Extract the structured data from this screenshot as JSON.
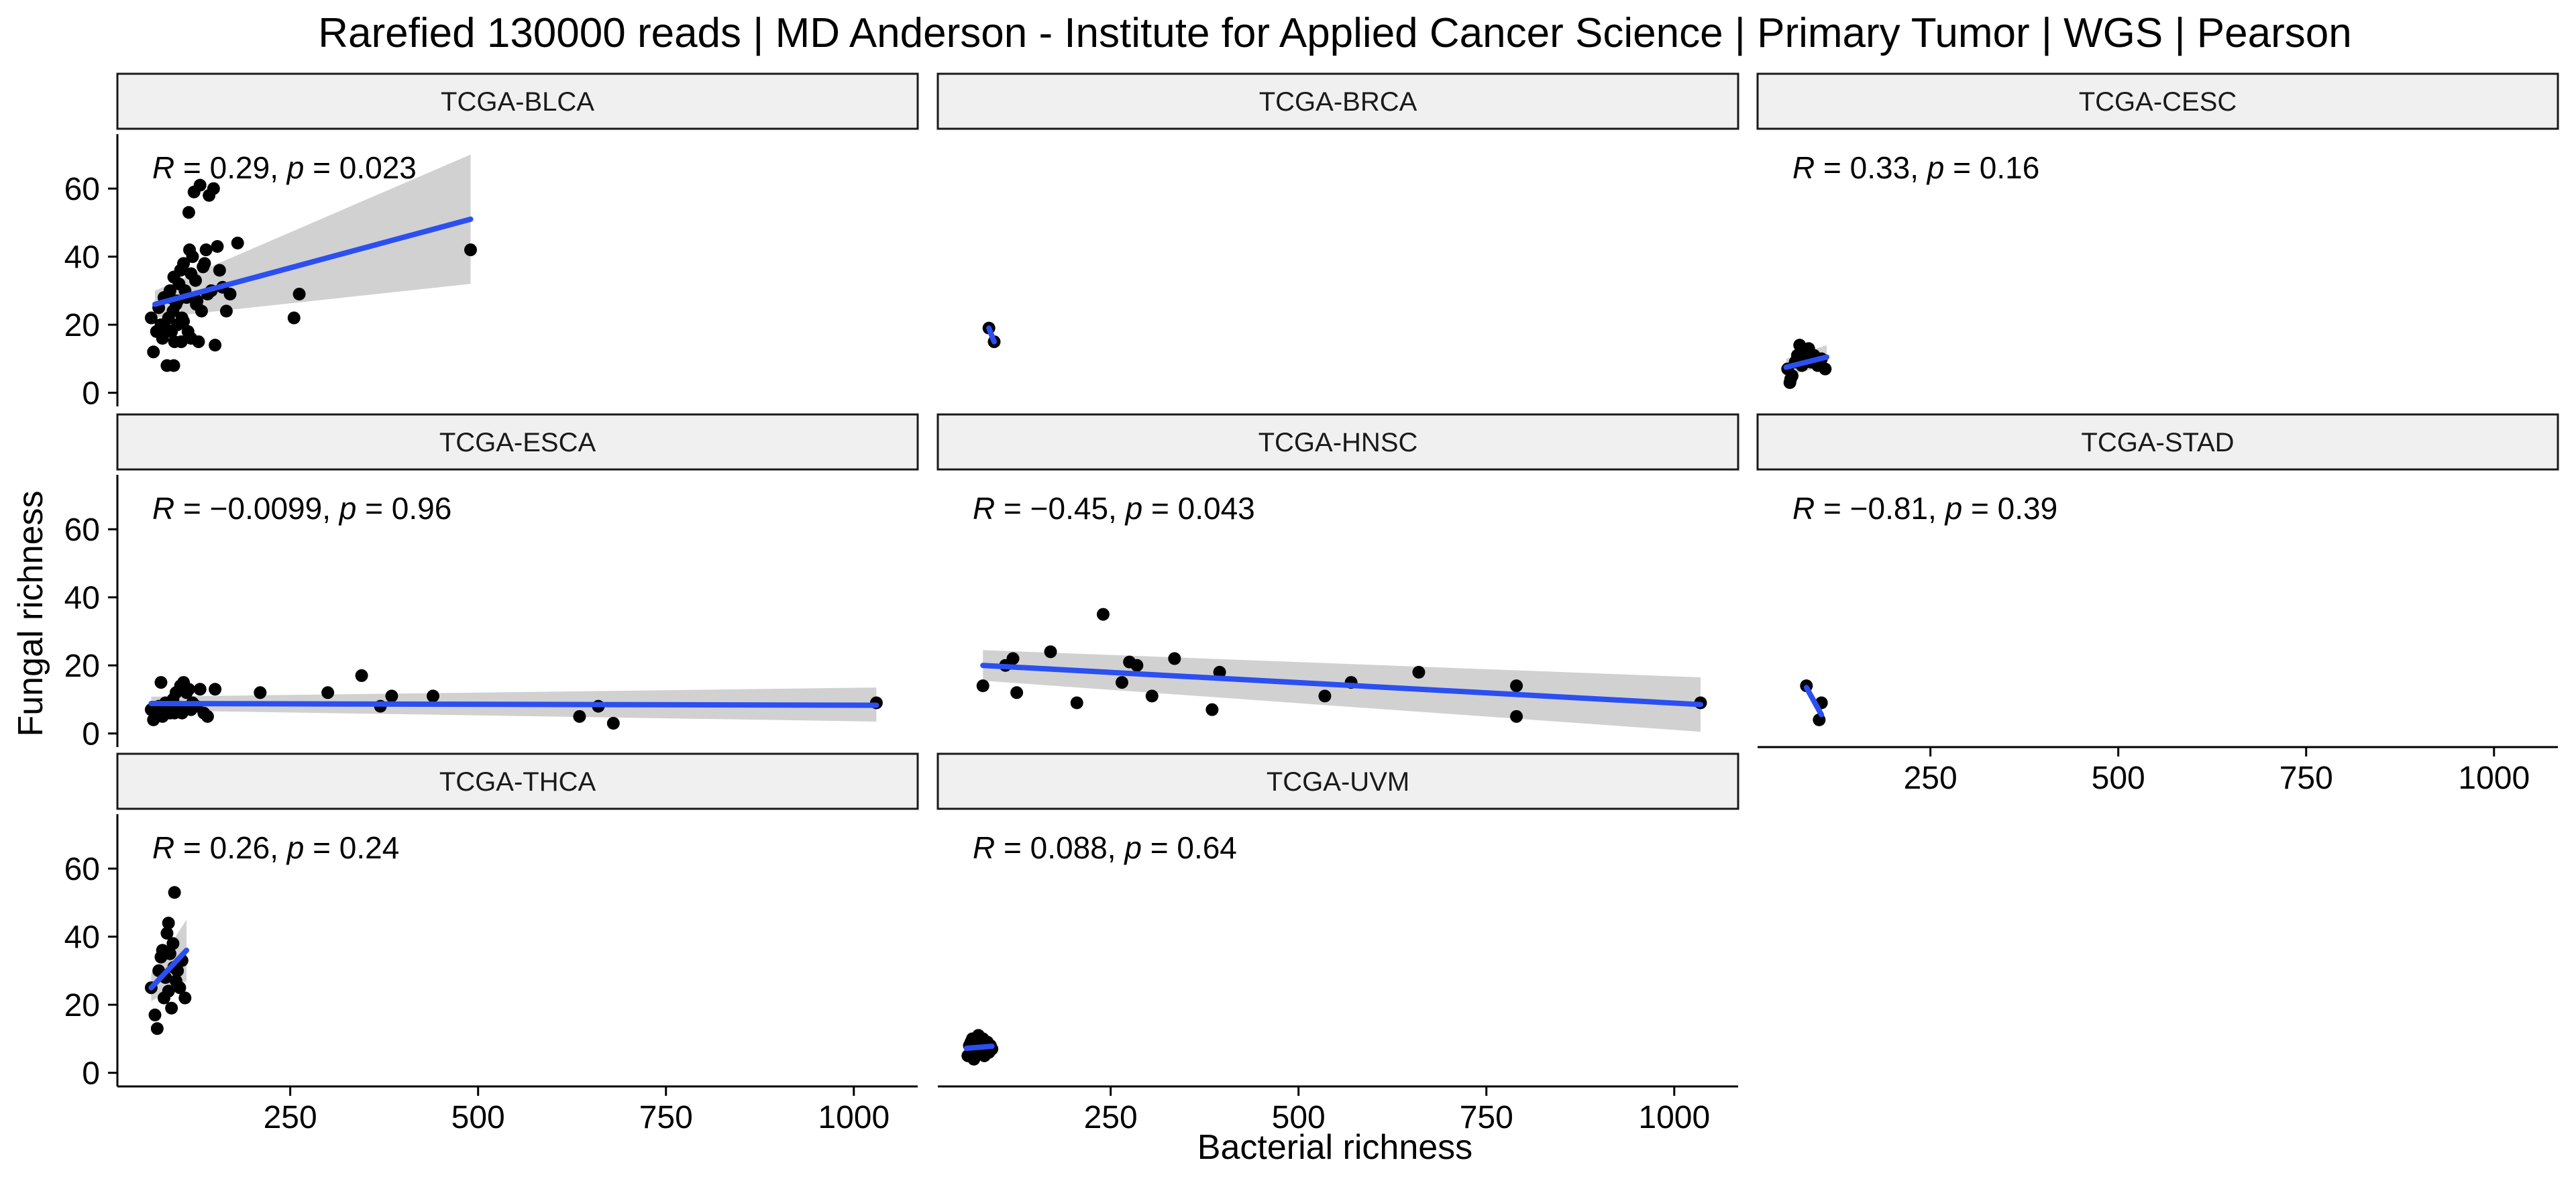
{
  "chart_data": {
    "type": "scatter",
    "title": "Rarefied 130000 reads | MD Anderson - Institute for Applied Cancer Science | Primary Tumor | WGS | Pearson",
    "xlabel": "Bacterial richness",
    "ylabel": "Fungal richness",
    "xlim": [
      20,
      1085
    ],
    "ylim": [
      -4,
      76
    ],
    "xticks": [
      250,
      500,
      750,
      1000
    ],
    "yticks": [
      0,
      20,
      40,
      60
    ],
    "grid": false,
    "point_color": "#000000",
    "line_color": "#2b4ff0",
    "band_color": "#cccccc",
    "strip_fill": "#f0f0f0",
    "panels": [
      {
        "name": "TCGA-BLCA",
        "stat": {
          "R_label": "R",
          "R_value": " = 0.29, ",
          "p_label": "p",
          "p_value": " = 0.023"
        },
        "points": [
          [
            65,
            22
          ],
          [
            68,
            12
          ],
          [
            72,
            18
          ],
          [
            75,
            25
          ],
          [
            78,
            20
          ],
          [
            80,
            16
          ],
          [
            82,
            28
          ],
          [
            84,
            19
          ],
          [
            86,
            8
          ],
          [
            88,
            22
          ],
          [
            90,
            30
          ],
          [
            92,
            18
          ],
          [
            94,
            24
          ],
          [
            95,
            34
          ],
          [
            96,
            15
          ],
          [
            98,
            26
          ],
          [
            100,
            20
          ],
          [
            102,
            32
          ],
          [
            104,
            36
          ],
          [
            106,
            22
          ],
          [
            108,
            38
          ],
          [
            110,
            30
          ],
          [
            112,
            28
          ],
          [
            114,
            18
          ],
          [
            115,
            53
          ],
          [
            116,
            42
          ],
          [
            118,
            35
          ],
          [
            120,
            40
          ],
          [
            122,
            59
          ],
          [
            124,
            33
          ],
          [
            126,
            27
          ],
          [
            128,
            15
          ],
          [
            130,
            61
          ],
          [
            132,
            24
          ],
          [
            134,
            37
          ],
          [
            136,
            38
          ],
          [
            138,
            42
          ],
          [
            140,
            29
          ],
          [
            142,
            58
          ],
          [
            145,
            30
          ],
          [
            148,
            60
          ],
          [
            150,
            14
          ],
          [
            153,
            43
          ],
          [
            156,
            36
          ],
          [
            160,
            31
          ],
          [
            165,
            24
          ],
          [
            170,
            29
          ],
          [
            180,
            44
          ],
          [
            255,
            22
          ],
          [
            262,
            29
          ],
          [
            490,
            42
          ],
          [
            95,
            8
          ],
          [
            100,
            27
          ],
          [
            108,
            21
          ],
          [
            118,
            16
          ],
          [
            125,
            26
          ],
          [
            90,
            28
          ],
          [
            105,
            15
          ]
        ],
        "fit": {
          "x": [
            70,
            490
          ],
          "y": [
            26,
            51
          ],
          "band_lo": [
            22,
            32
          ],
          "band_hi": [
            30,
            70
          ]
        }
      },
      {
        "name": "TCGA-BRCA",
        "stat": null,
        "points": [
          [
            88,
            19
          ],
          [
            95,
            15
          ]
        ],
        "fit": {
          "x": [
            88,
            95
          ],
          "y": [
            19,
            15
          ],
          "band_lo": [
            19,
            15
          ],
          "band_hi": [
            19,
            15
          ]
        }
      },
      {
        "name": "TCGA-CESC",
        "stat": {
          "R_label": "R",
          "R_value": " = 0.33, ",
          "p_label": "p",
          "p_value": " = 0.16"
        },
        "points": [
          [
            60,
            7
          ],
          [
            63,
            3
          ],
          [
            66,
            5
          ],
          [
            70,
            9
          ],
          [
            73,
            11
          ],
          [
            76,
            14
          ],
          [
            79,
            8
          ],
          [
            82,
            12
          ],
          [
            85,
            10
          ],
          [
            88,
            13
          ],
          [
            91,
            9
          ],
          [
            95,
            11
          ],
          [
            100,
            8
          ],
          [
            105,
            10
          ],
          [
            110,
            7
          ],
          [
            64,
            4
          ]
        ],
        "fit": {
          "x": [
            58,
            112
          ],
          "y": [
            7.5,
            10.5
          ],
          "band_lo": [
            5,
            8
          ],
          "band_hi": [
            10,
            14
          ]
        }
      },
      {
        "name": "TCGA-ESCA",
        "stat": {
          "R_label": "R",
          "R_value": " = −0.0099, ",
          "p_label": "p",
          "p_value": " = 0.96"
        },
        "points": [
          [
            65,
            7
          ],
          [
            68,
            4
          ],
          [
            70,
            6
          ],
          [
            72,
            5
          ],
          [
            75,
            8
          ],
          [
            78,
            15
          ],
          [
            80,
            5
          ],
          [
            82,
            7
          ],
          [
            84,
            9
          ],
          [
            86,
            6
          ],
          [
            88,
            7
          ],
          [
            90,
            6
          ],
          [
            92,
            8
          ],
          [
            94,
            10
          ],
          [
            96,
            6
          ],
          [
            98,
            12
          ],
          [
            100,
            7
          ],
          [
            104,
            14
          ],
          [
            106,
            6
          ],
          [
            108,
            15
          ],
          [
            110,
            7
          ],
          [
            112,
            12
          ],
          [
            115,
            13
          ],
          [
            120,
            9
          ],
          [
            125,
            8
          ],
          [
            130,
            13
          ],
          [
            140,
            5
          ],
          [
            150,
            13
          ],
          [
            210,
            12
          ],
          [
            300,
            12
          ],
          [
            345,
            17
          ],
          [
            370,
            8
          ],
          [
            385,
            11
          ],
          [
            440,
            11
          ],
          [
            635,
            5
          ],
          [
            660,
            8
          ],
          [
            680,
            3
          ],
          [
            1030,
            9
          ],
          [
            118,
            7
          ],
          [
            135,
            6
          ]
        ],
        "fit": {
          "x": [
            65,
            1030
          ],
          "y": [
            8.8,
            8.3
          ],
          "band_lo": [
            6.8,
            3.5
          ],
          "band_hi": [
            10.8,
            13.5
          ]
        }
      },
      {
        "name": "TCGA-HNSC",
        "stat": {
          "R_label": "R",
          "R_value": " = −0.45, ",
          "p_label": "p",
          "p_value": " = 0.043"
        },
        "points": [
          [
            80,
            14
          ],
          [
            110,
            20
          ],
          [
            120,
            22
          ],
          [
            125,
            12
          ],
          [
            170,
            24
          ],
          [
            205,
            9
          ],
          [
            240,
            35
          ],
          [
            265,
            15
          ],
          [
            275,
            21
          ],
          [
            285,
            20
          ],
          [
            305,
            11
          ],
          [
            335,
            22
          ],
          [
            385,
            7
          ],
          [
            395,
            18
          ],
          [
            535,
            11
          ],
          [
            570,
            15
          ],
          [
            660,
            18
          ],
          [
            790,
            14
          ],
          [
            790,
            5
          ],
          [
            1035,
            9
          ]
        ],
        "fit": {
          "x": [
            80,
            1035
          ],
          "y": [
            20,
            8.5
          ],
          "band_lo": [
            15.5,
            0.5
          ],
          "band_hi": [
            24.5,
            16.5
          ]
        }
      },
      {
        "name": "TCGA-STAD",
        "stat": {
          "R_label": "R",
          "R_value": " = −0.81, ",
          "p_label": "p",
          "p_value": " = 0.39"
        },
        "points": [
          [
            85,
            14
          ],
          [
            102,
            4
          ],
          [
            105,
            9
          ]
        ],
        "fit": {
          "x": [
            85,
            105
          ],
          "y": [
            13.5,
            5.5
          ],
          "band_lo": [
            13.5,
            5.5
          ],
          "band_hi": [
            13.5,
            5.5
          ]
        }
      },
      {
        "name": "TCGA-THCA",
        "stat": {
          "R_label": "R",
          "R_value": " = 0.26, ",
          "p_label": "p",
          "p_value": " = 0.24"
        },
        "points": [
          [
            65,
            25
          ],
          [
            70,
            17
          ],
          [
            73,
            13
          ],
          [
            75,
            30
          ],
          [
            78,
            34
          ],
          [
            80,
            36
          ],
          [
            82,
            22
          ],
          [
            84,
            28
          ],
          [
            86,
            41
          ],
          [
            88,
            44
          ],
          [
            90,
            35
          ],
          [
            92,
            19
          ],
          [
            94,
            38
          ],
          [
            96,
            53
          ],
          [
            98,
            27
          ],
          [
            100,
            30
          ],
          [
            103,
            25
          ],
          [
            106,
            33
          ],
          [
            110,
            22
          ],
          [
            88,
            24
          ],
          [
            95,
            31
          ]
        ],
        "fit": {
          "x": [
            65,
            112
          ],
          "y": [
            25,
            36
          ],
          "band_lo": [
            21,
            27
          ],
          "band_hi": [
            29,
            45
          ]
        }
      },
      {
        "name": "TCGA-UVM",
        "stat": {
          "R_label": "R",
          "R_value": " = 0.088, ",
          "p_label": "p",
          "p_value": " = 0.64"
        },
        "points": [
          [
            60,
            5
          ],
          [
            62,
            8
          ],
          [
            64,
            6
          ],
          [
            66,
            10
          ],
          [
            68,
            4
          ],
          [
            70,
            9
          ],
          [
            72,
            7
          ],
          [
            74,
            11
          ],
          [
            76,
            6
          ],
          [
            78,
            8
          ],
          [
            80,
            10
          ],
          [
            82,
            5
          ],
          [
            84,
            7
          ],
          [
            86,
            9
          ],
          [
            88,
            6
          ],
          [
            90,
            8
          ],
          [
            92,
            7
          ],
          [
            64,
            9
          ],
          [
            70,
            5
          ],
          [
            76,
            10
          ],
          [
            82,
            8
          ]
        ],
        "fit": {
          "x": [
            58,
            92
          ],
          "y": [
            7.2,
            7.8
          ],
          "band_lo": [
            6,
            6
          ],
          "band_hi": [
            8.5,
            9.5
          ]
        }
      }
    ]
  }
}
